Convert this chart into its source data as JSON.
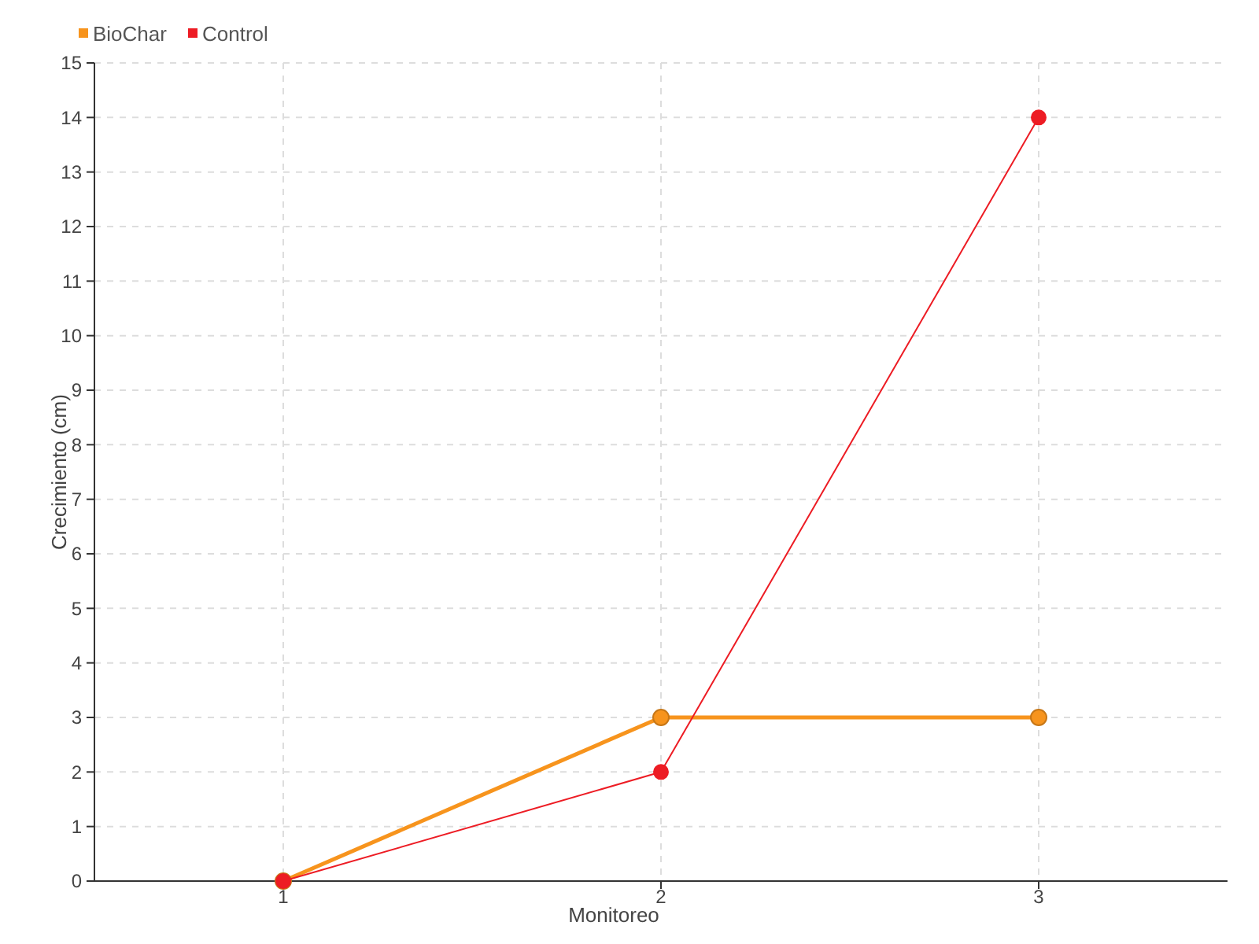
{
  "chart_data": {
    "type": "line",
    "xlabel": "Monitoreo",
    "ylabel": "Crecimiento (cm)",
    "categories": [
      "1",
      "2",
      "3"
    ],
    "series": [
      {
        "name": "BioChar",
        "color": "#f7941d",
        "values": [
          0,
          3,
          3
        ]
      },
      {
        "name": "Control",
        "color": "#ed1c24",
        "values": [
          0,
          2,
          14
        ]
      }
    ],
    "ylim": [
      0,
      15
    ],
    "yticks": [
      0,
      1,
      2,
      3,
      4,
      5,
      6,
      7,
      8,
      9,
      10,
      11,
      12,
      13,
      14,
      15
    ],
    "grid": true,
    "legend": "top left",
    "marker": "circle",
    "line_style": "solid"
  }
}
